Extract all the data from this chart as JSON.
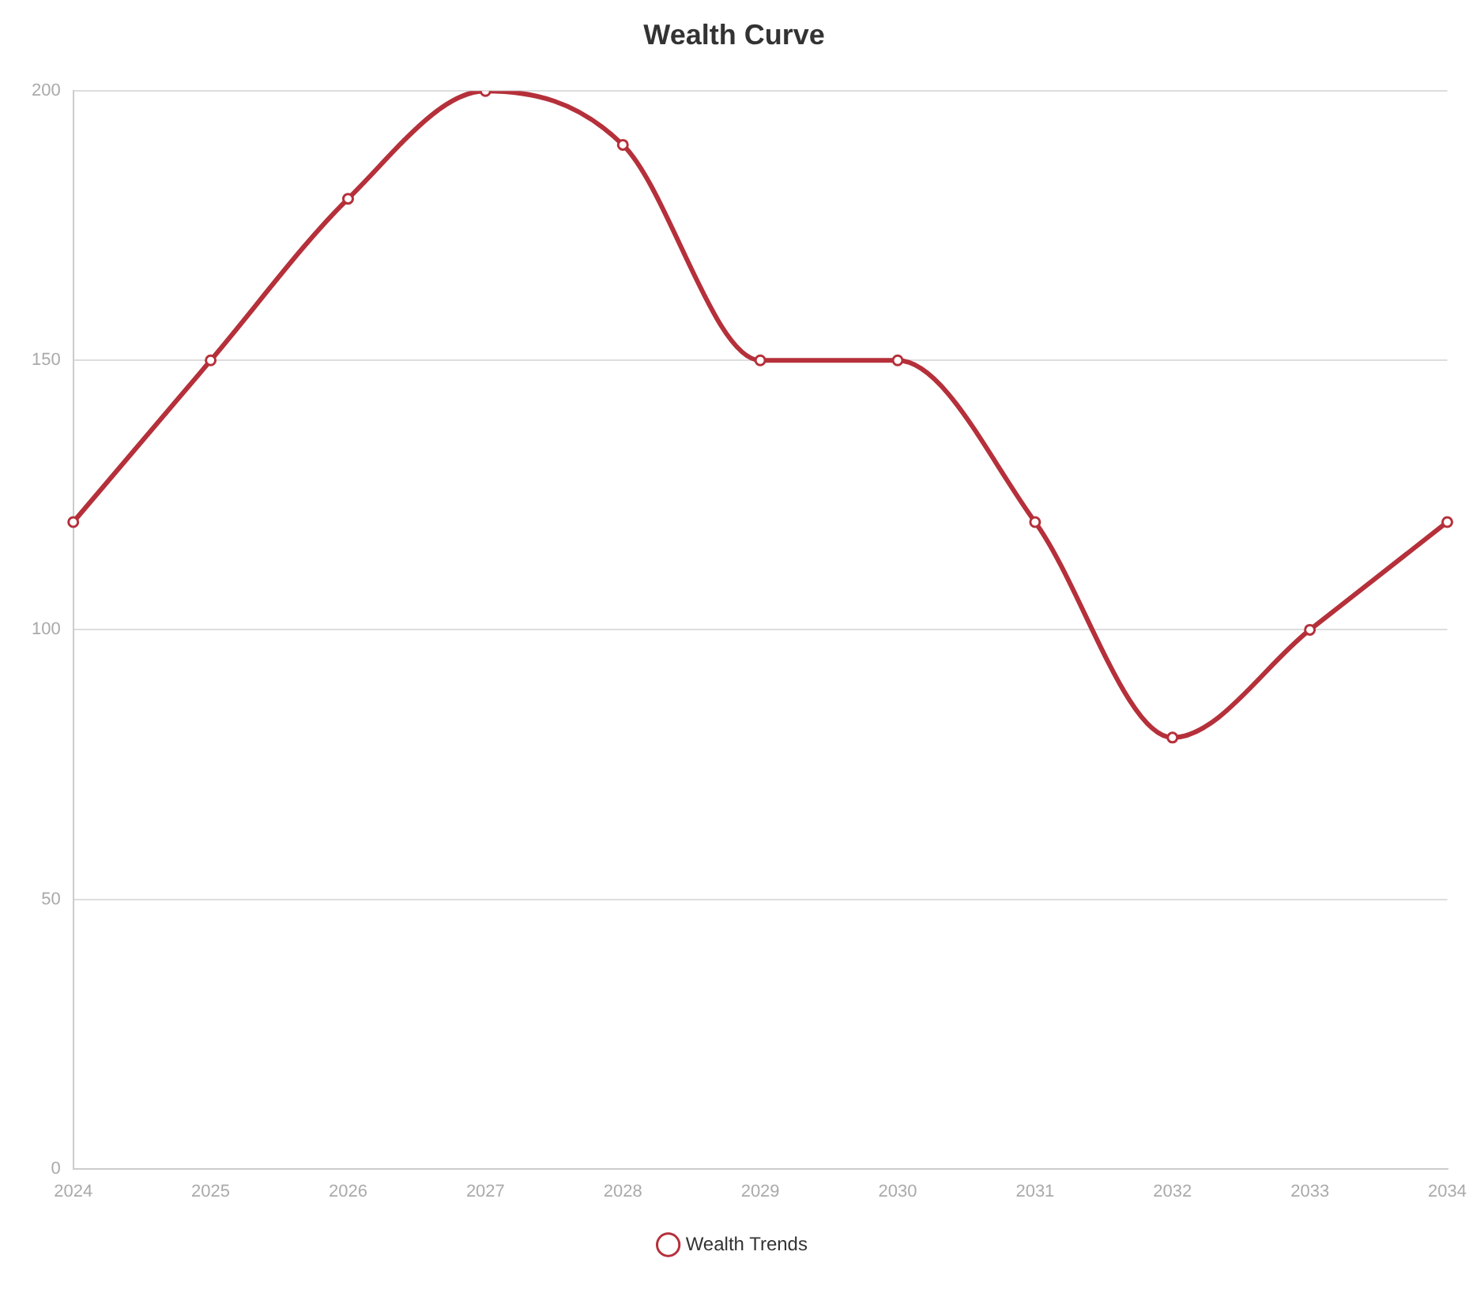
{
  "chart_data": {
    "type": "line",
    "title": "Wealth Curve",
    "categories": [
      "2024",
      "2025",
      "2026",
      "2027",
      "2028",
      "2029",
      "2030",
      "2031",
      "2032",
      "2033",
      "2034"
    ],
    "series": [
      {
        "name": "Wealth Trends",
        "color": "#b5303a",
        "values": [
          120,
          150,
          180,
          200,
          190,
          150,
          150,
          120,
          80,
          100,
          120
        ]
      }
    ],
    "ylim": [
      0,
      200
    ],
    "yticks": [
      0,
      50,
      100,
      150,
      200
    ],
    "grid": "y",
    "legend": "bottom",
    "marker": "circle",
    "line_style": "solid"
  }
}
